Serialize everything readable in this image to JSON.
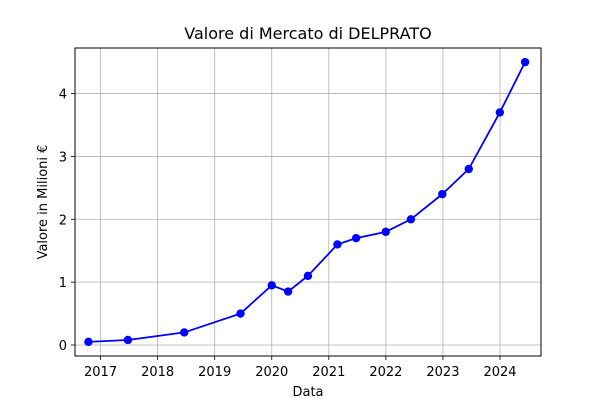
{
  "chart_data": {
    "type": "line",
    "title": "Valore di Mercato di DELPRATO",
    "xlabel": "Data",
    "ylabel": "Valore in Milioni €",
    "x_ticks": [
      "2017",
      "2018",
      "2019",
      "2020",
      "2021",
      "2022",
      "2023",
      "2024"
    ],
    "y_ticks": [
      "0",
      "1",
      "2",
      "3",
      "4"
    ],
    "xlim": [
      "2016-07-21",
      "2024-09-20"
    ],
    "ylim": [
      -0.175,
      4.725
    ],
    "grid": true,
    "series": [
      {
        "color": "#0000ff",
        "marker": "circle",
        "points": [
          {
            "x": "2016-10-15",
            "y": 0.05
          },
          {
            "x": "2017-06-25",
            "y": 0.08
          },
          {
            "x": "2018-06-20",
            "y": 0.2
          },
          {
            "x": "2019-06-15",
            "y": 0.5
          },
          {
            "x": "2020-01-01",
            "y": 0.95
          },
          {
            "x": "2020-04-15",
            "y": 0.85
          },
          {
            "x": "2020-08-20",
            "y": 1.1
          },
          {
            "x": "2021-02-25",
            "y": 1.6
          },
          {
            "x": "2021-06-25",
            "y": 1.7
          },
          {
            "x": "2021-12-31",
            "y": 1.8
          },
          {
            "x": "2022-06-10",
            "y": 2.0
          },
          {
            "x": "2022-12-28",
            "y": 2.4
          },
          {
            "x": "2023-06-15",
            "y": 2.8
          },
          {
            "x": "2023-12-31",
            "y": 3.7
          },
          {
            "x": "2024-06-10",
            "y": 4.5
          }
        ]
      }
    ]
  }
}
